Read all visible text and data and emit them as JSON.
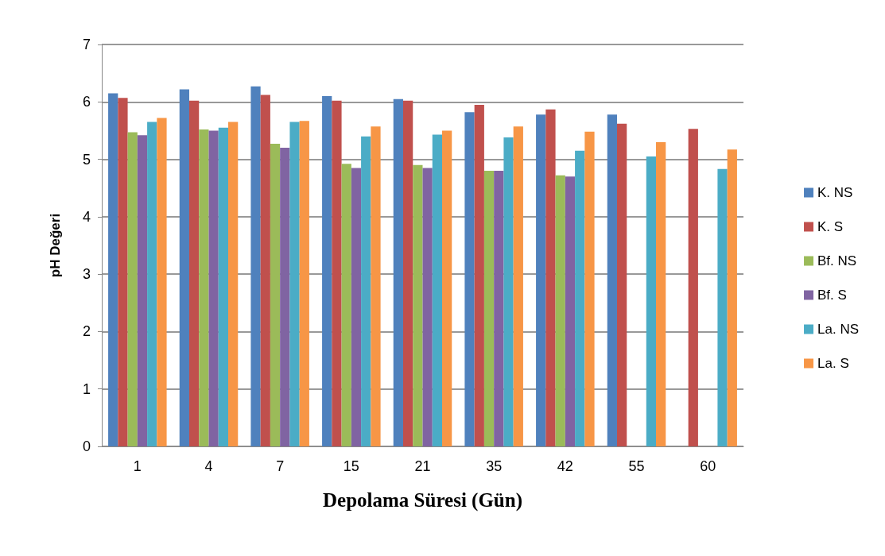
{
  "chart_data": {
    "type": "bar",
    "xlabel": "Depolama Süresi (Gün)",
    "ylabel": "pH Değeri",
    "categories": [
      "1",
      "4",
      "7",
      "15",
      "21",
      "35",
      "42",
      "55",
      "60"
    ],
    "series": [
      {
        "name": "K. NS",
        "color": "#4f81bd",
        "values": [
          6.15,
          6.22,
          6.27,
          6.1,
          6.05,
          5.82,
          5.78,
          5.78,
          null
        ]
      },
      {
        "name": "K. S",
        "color": "#c0504d",
        "values": [
          6.07,
          6.02,
          6.12,
          6.02,
          6.02,
          5.95,
          5.87,
          5.62,
          5.53
        ]
      },
      {
        "name": "Bf. NS",
        "color": "#9bbb59",
        "values": [
          5.47,
          5.52,
          5.27,
          4.92,
          4.9,
          4.8,
          4.72,
          null,
          null
        ]
      },
      {
        "name": "Bf. S",
        "color": "#8064a2",
        "values": [
          5.42,
          5.5,
          5.2,
          4.85,
          4.85,
          4.8,
          4.7,
          null,
          null
        ]
      },
      {
        "name": "La. NS",
        "color": "#4bacc6",
        "values": [
          5.65,
          5.55,
          5.65,
          5.4,
          5.43,
          5.38,
          5.15,
          5.05,
          4.83
        ]
      },
      {
        "name": "La. S",
        "color": "#f79646",
        "values": [
          5.72,
          5.65,
          5.67,
          5.57,
          5.5,
          5.57,
          5.48,
          5.3,
          5.17
        ]
      }
    ],
    "ylim": [
      0,
      7
    ],
    "yticks": [
      0,
      1,
      2,
      3,
      4,
      5,
      6,
      7
    ],
    "grid": "y",
    "legend": "right"
  }
}
